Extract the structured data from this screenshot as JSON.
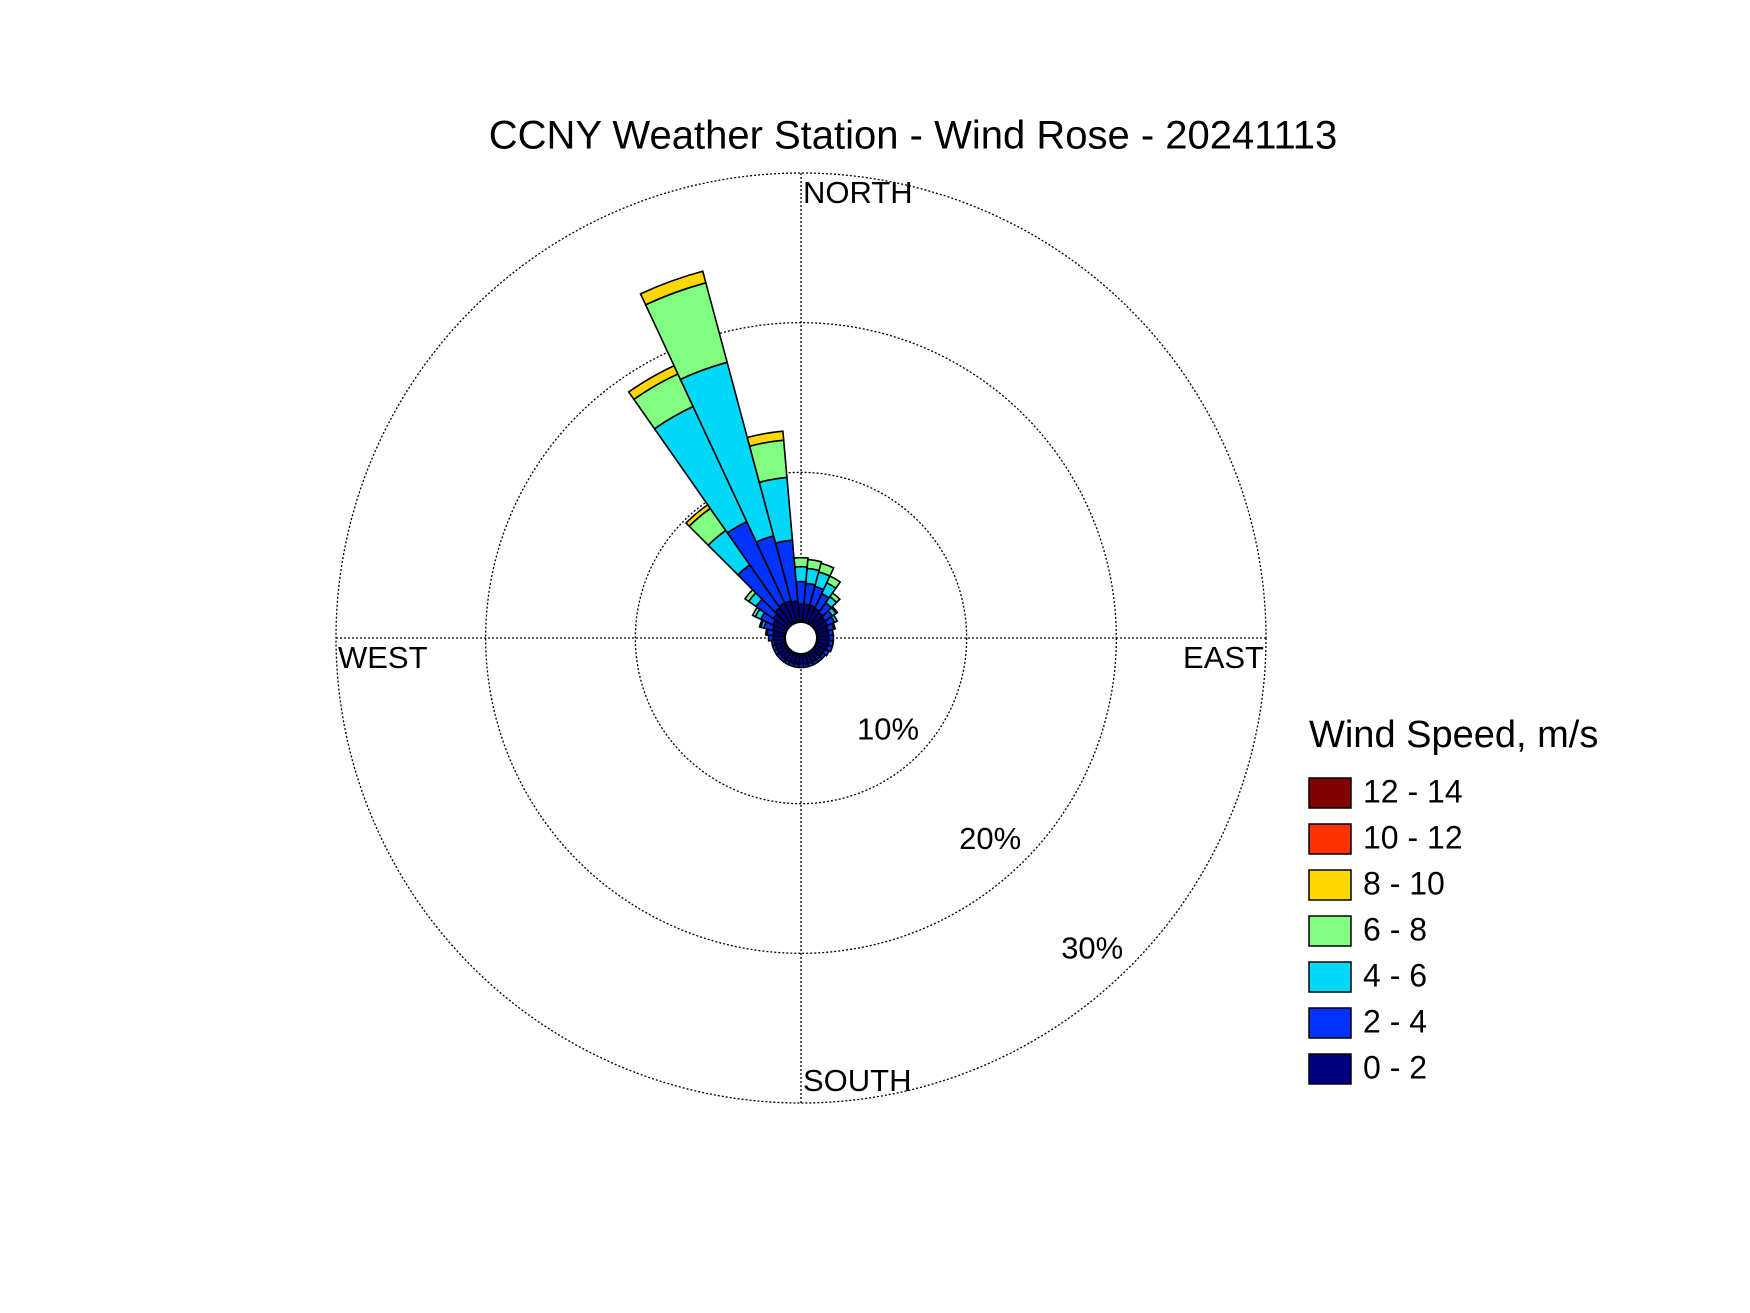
{
  "chart_data": {
    "type": "windrose",
    "title": "CCNY Weather Station - Wind Rose - 20241113",
    "legend_title": "Wind Speed, m/s",
    "compass_labels": [
      "NORTH",
      "EAST",
      "SOUTH",
      "WEST"
    ],
    "theta": [
      0,
      10,
      20,
      30,
      40,
      50,
      60,
      70,
      80,
      90,
      100,
      110,
      120,
      130,
      140,
      150,
      160,
      170,
      180,
      190,
      200,
      210,
      220,
      230,
      240,
      250,
      260,
      270,
      280,
      290,
      300,
      310,
      320,
      330,
      340,
      350
    ],
    "rlim": [
      0,
      30
    ],
    "rticks": [
      {
        "value": 10,
        "label": "10%"
      },
      {
        "value": 20,
        "label": "20%"
      },
      {
        "value": 30,
        "label": "30%"
      }
    ],
    "grid": true,
    "series": [
      {
        "name": "0 - 2",
        "color": "#000080",
        "values": [
          1.2,
          1.2,
          1.2,
          1.1,
          1.0,
          0.9,
          0.9,
          0.8,
          0.8,
          0.8,
          0.8,
          0.8,
          0.7,
          0.7,
          0.7,
          0.7,
          0.7,
          0.7,
          0.7,
          0.7,
          0.7,
          0.7,
          0.7,
          0.7,
          0.7,
          0.7,
          0.7,
          0.8,
          0.8,
          0.9,
          1.0,
          1.2,
          1.4,
          1.5,
          1.5,
          1.4
        ]
      },
      {
        "name": "2 - 4",
        "color": "#0033ff",
        "values": [
          1.5,
          1.4,
          1.3,
          1.1,
          0.8,
          0.6,
          0.5,
          0.4,
          0.3,
          0.3,
          0.3,
          0.3,
          0.3,
          0.2,
          0.2,
          0.2,
          0.2,
          0.2,
          0.2,
          0.2,
          0.2,
          0.2,
          0.2,
          0.2,
          0.2,
          0.2,
          0.2,
          0.3,
          0.4,
          0.6,
          0.9,
          1.4,
          3.5,
          6.0,
          4.5,
          4.1
        ]
      },
      {
        "name": "4 - 6",
        "color": "#00d8f8",
        "values": [
          1.0,
          1.0,
          1.0,
          0.8,
          0.5,
          0.3,
          0.2,
          0.1,
          0,
          0,
          0,
          0,
          0,
          0,
          0,
          0,
          0,
          0,
          0,
          0,
          0,
          0,
          0,
          0,
          0,
          0,
          0,
          0,
          0.1,
          0.2,
          0.4,
          0.6,
          2.8,
          8.5,
          12.0,
          4.2
        ]
      },
      {
        "name": "6 - 8",
        "color": "#80ff80",
        "values": [
          0.6,
          0.6,
          0.6,
          0.5,
          0.3,
          0.1,
          0,
          0,
          0,
          0,
          0,
          0,
          0,
          0,
          0,
          0,
          0,
          0,
          0,
          0,
          0,
          0,
          0,
          0,
          0,
          0,
          0,
          0,
          0,
          0.1,
          0.2,
          0.3,
          1.8,
          2.4,
          5.5,
          2.5
        ]
      },
      {
        "name": "8 - 10",
        "color": "#ffd700",
        "values": [
          0,
          0,
          0,
          0,
          0,
          0,
          0,
          0,
          0,
          0,
          0,
          0,
          0,
          0,
          0,
          0,
          0,
          0,
          0,
          0,
          0,
          0,
          0,
          0,
          0,
          0,
          0,
          0,
          0,
          0,
          0,
          0,
          0.3,
          0.6,
          0.8,
          0.6
        ]
      },
      {
        "name": "10 - 12",
        "color": "#ff3300",
        "values": [
          0,
          0,
          0,
          0,
          0,
          0,
          0,
          0,
          0,
          0,
          0,
          0,
          0,
          0,
          0,
          0,
          0,
          0,
          0,
          0,
          0,
          0,
          0,
          0,
          0,
          0,
          0,
          0,
          0,
          0,
          0,
          0,
          0,
          0,
          0,
          0
        ]
      },
      {
        "name": "12 - 14",
        "color": "#800000",
        "values": [
          0,
          0,
          0,
          0,
          0,
          0,
          0,
          0,
          0,
          0,
          0,
          0,
          0,
          0,
          0,
          0,
          0,
          0,
          0,
          0,
          0,
          0,
          0,
          0,
          0,
          0,
          0,
          0,
          0,
          0,
          0,
          0,
          0,
          0,
          0,
          0
        ]
      }
    ]
  }
}
